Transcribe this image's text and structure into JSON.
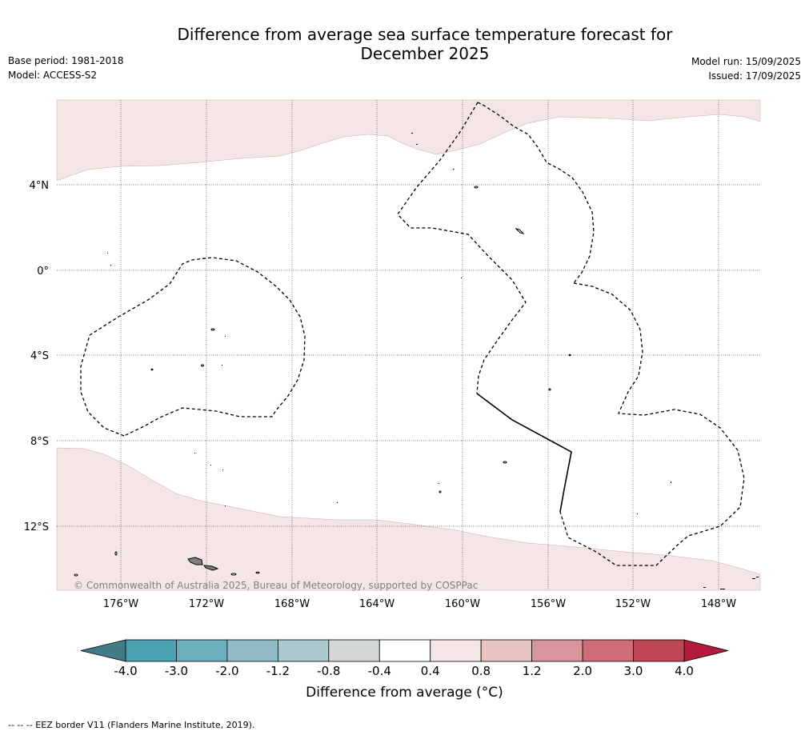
{
  "title_line1": "Difference from average sea surface temperature forecast for",
  "title_line2": "December 2025",
  "base_period": "Base period: 1981-2018",
  "model": "Model: ACCESS-S2",
  "model_run": "Model run: 15/09/2025",
  "issued": "Issued: 17/09/2025",
  "copyright": "© Commonwealth of Australia 2025, Bureau of Meteorology, supported by COSPPac",
  "lat_labels": [
    "4°N",
    "0°",
    "4°S",
    "8°S",
    "12°S"
  ],
  "lon_labels": [
    "176°W",
    "172°W",
    "168°W",
    "164°W",
    "160°W",
    "156°W",
    "152°W",
    "148°W"
  ],
  "colorbar": {
    "ticks": [
      "-4.0",
      "-3.0",
      "-2.0",
      "-1.2",
      "-0.8",
      "-0.4",
      "0.4",
      "0.8",
      "1.2",
      "2.0",
      "3.0",
      "4.0"
    ],
    "colors": [
      "#4aa1b1",
      "#6daebd",
      "#8fbbc6",
      "#acc9cf",
      "#d3d7d8",
      "#ffffff",
      "#f4e6e5",
      "#e7c5c1",
      "#d8959b",
      "#cd6d78",
      "#bf4657"
    ],
    "under_color": "#3f7c86",
    "over_color": "#b31a3b",
    "label": "Difference from average (°C)"
  },
  "colors": {
    "slightly_warm_fill": "#f4e6e5",
    "land_fill": "#808080"
  },
  "footnote": "--  --  -- EEZ border V11 (Flanders Marine Institute, 2019)."
}
